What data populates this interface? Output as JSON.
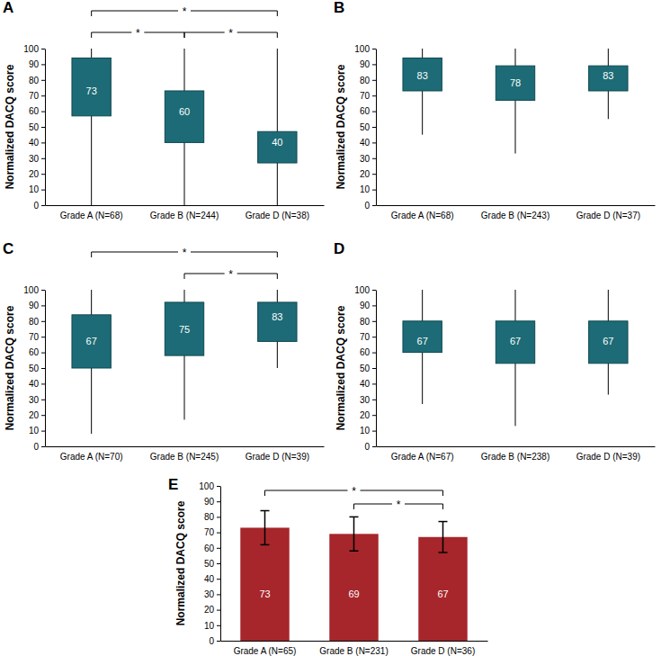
{
  "chart_data": [
    {
      "type": "box",
      "title": "A",
      "y_label": "Normalized DACQ score",
      "categories": [
        "Grade A (N=68)",
        "Grade B (N=244)",
        "Grade D (N=38)"
      ],
      "boxes": [
        {
          "low": 0,
          "q1": 57,
          "median": 73,
          "q3": 94,
          "high": 100
        },
        {
          "low": 0,
          "q1": 40,
          "median": 60,
          "q3": 73,
          "high": 100
        },
        {
          "low": 0,
          "q1": 27,
          "median": 40,
          "q3": 47,
          "high": 100
        }
      ],
      "color": "#1d6b76",
      "data_labels": true,
      "annotations": [
        {
          "from": 0,
          "to": 1,
          "label": "*"
        },
        {
          "from": 1,
          "to": 2,
          "label": "*"
        },
        {
          "from": 0,
          "to": 2,
          "label": "*"
        }
      ],
      "ylim": [
        0,
        100
      ],
      "yticks": [
        0,
        10,
        20,
        30,
        40,
        50,
        60,
        70,
        80,
        90,
        100
      ]
    },
    {
      "type": "box",
      "title": "B",
      "y_label": "Normalized DACQ score",
      "categories": [
        "Grade A (N=68)",
        "Grade B (N=243)",
        "Grade D (N=37)"
      ],
      "boxes": [
        {
          "low": 45,
          "q1": 73,
          "median": 83,
          "q3": 94,
          "high": 100
        },
        {
          "low": 33,
          "q1": 67,
          "median": 78,
          "q3": 89,
          "high": 100
        },
        {
          "low": 55,
          "q1": 73,
          "median": 83,
          "q3": 89,
          "high": 100
        }
      ],
      "color": "#1d6b76",
      "data_labels": true,
      "ylim": [
        0,
        100
      ],
      "yticks": [
        0,
        10,
        20,
        30,
        40,
        50,
        60,
        70,
        80,
        90,
        100
      ]
    },
    {
      "type": "box",
      "title": "C",
      "y_label": "Normalized DACQ score",
      "categories": [
        "Grade A (N=70)",
        "Grade B (N=245)",
        "Grade D (N=39)"
      ],
      "boxes": [
        {
          "low": 8,
          "q1": 50,
          "median": 67,
          "q3": 84,
          "high": 100
        },
        {
          "low": 17,
          "q1": 58,
          "median": 75,
          "q3": 92,
          "high": 100
        },
        {
          "low": 50,
          "q1": 67,
          "median": 83,
          "q3": 92,
          "high": 100
        }
      ],
      "color": "#1d6b76",
      "data_labels": true,
      "annotations": [
        {
          "from": 1,
          "to": 2,
          "label": "*"
        },
        {
          "from": 0,
          "to": 2,
          "label": "*"
        }
      ],
      "ylim": [
        0,
        100
      ],
      "yticks": [
        0,
        10,
        20,
        30,
        40,
        50,
        60,
        70,
        80,
        90,
        100
      ]
    },
    {
      "type": "box",
      "title": "D",
      "y_label": "Normalized DACQ score",
      "categories": [
        "Grade A (N=67)",
        "Grade B (N=238)",
        "Grade D (N=39)"
      ],
      "boxes": [
        {
          "low": 27,
          "q1": 60,
          "median": 67,
          "q3": 80,
          "high": 100
        },
        {
          "low": 13,
          "q1": 53,
          "median": 67,
          "q3": 80,
          "high": 100
        },
        {
          "low": 33,
          "q1": 53,
          "median": 67,
          "q3": 80,
          "high": 100
        }
      ],
      "color": "#1d6b76",
      "data_labels": true,
      "ylim": [
        0,
        100
      ],
      "yticks": [
        0,
        10,
        20,
        30,
        40,
        50,
        60,
        70,
        80,
        90,
        100
      ]
    },
    {
      "type": "bar",
      "title": "E",
      "y_label": "Normalized DACQ score",
      "categories": [
        "Grade A (N=65)",
        "Grade B (N=231)",
        "Grade D (N=36)"
      ],
      "values": [
        73,
        69,
        67
      ],
      "errors": [
        11,
        11,
        10
      ],
      "color": "#a6262b",
      "data_labels": true,
      "annotations": [
        {
          "from": 1,
          "to": 2,
          "label": "*"
        },
        {
          "from": 0,
          "to": 2,
          "label": "*"
        }
      ],
      "ylim": [
        0,
        100
      ],
      "yticks": [
        0,
        10,
        20,
        30,
        40,
        50,
        60,
        70,
        80,
        90,
        100
      ]
    }
  ]
}
